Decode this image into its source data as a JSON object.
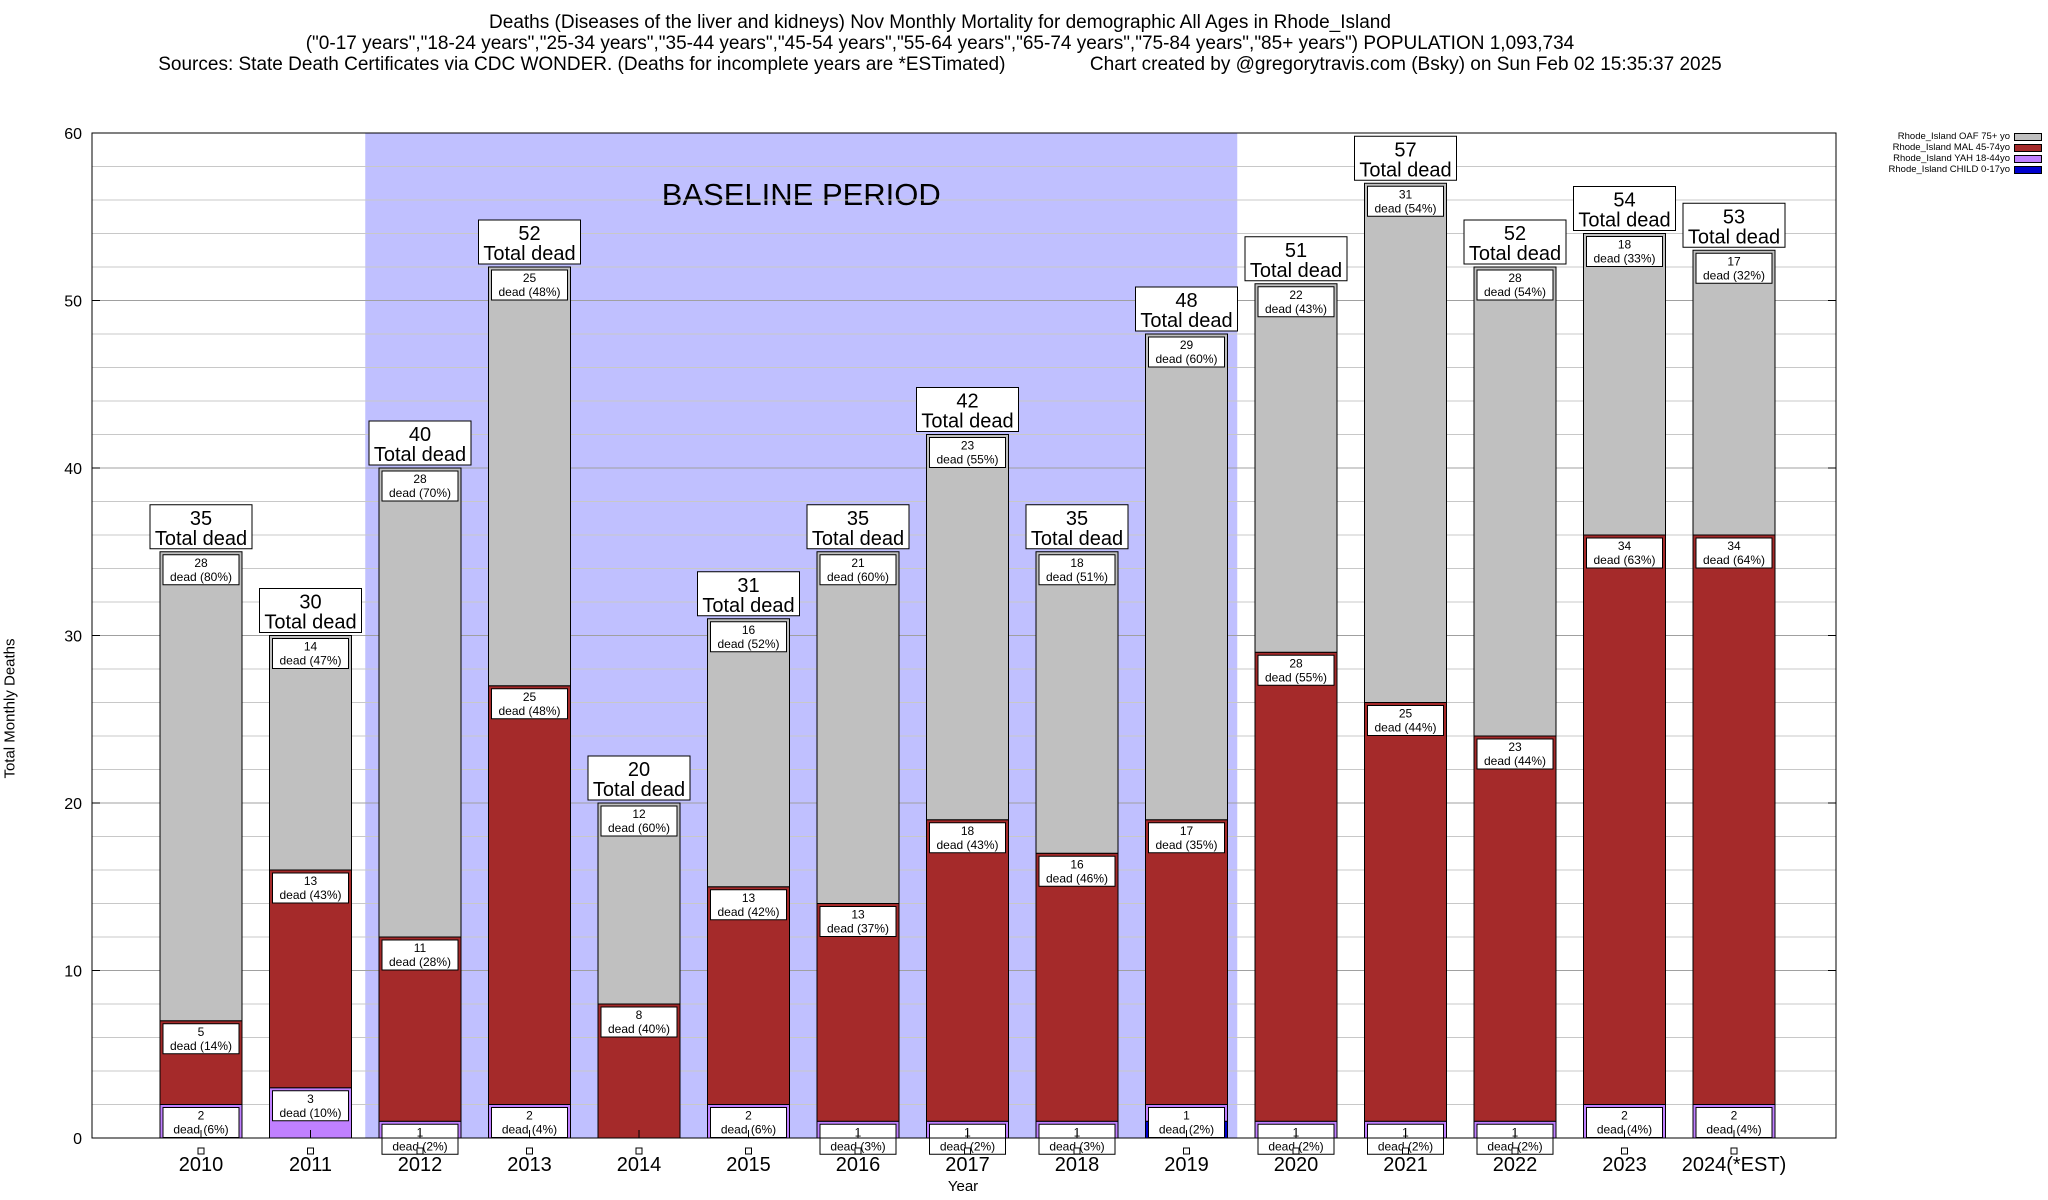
{
  "header": {
    "line1": "Deaths (Diseases of the liver and kidneys) Nov Monthly Mortality for demographic All Ages in Rhode_Island",
    "line2": "(\"0-17 years\",\"18-24 years\",\"25-34 years\",\"35-44 years\",\"45-54 years\",\"55-64 years\",\"65-74 years\",\"75-84 years\",\"85+ years\") POPULATION 1,093,734",
    "line3": "Sources: State Death Certificates via CDC WONDER. (Deaths for incomplete years are *ESTimated)                Chart created by @gregorytravis.com (Bsky) on Sun Feb 02 15:35:37 2025"
  },
  "colors": {
    "OAF": "#c0c0c0",
    "MAL": "#a52a2a",
    "YAH": "#c080ff",
    "CHILD": "#0000cd",
    "baseline": "#c0c0ff"
  },
  "chart_data": {
    "type": "bar",
    "stacked": true,
    "xlabel": "Year",
    "ylabel": "Total Monthly Deaths",
    "ylim": [
      0,
      60
    ],
    "yticks": [
      0,
      10,
      20,
      30,
      40,
      50,
      60
    ],
    "grid": true,
    "legend_position": "top-right",
    "categories": [
      "2010",
      "2011",
      "2012",
      "2013",
      "2014",
      "2015",
      "2016",
      "2017",
      "2018",
      "2019",
      "2020",
      "2021",
      "2022",
      "2023",
      "2024(*EST)"
    ],
    "baseline_label": "BASELINE PERIOD",
    "baseline_range": [
      "2012",
      "2019"
    ],
    "series": [
      {
        "name": "Rhode_Island CHILD 0-17yo",
        "key": "CHILD",
        "values": [
          0,
          0,
          0,
          0,
          0,
          0,
          0,
          0,
          0,
          1,
          0,
          0,
          0,
          0,
          0
        ]
      },
      {
        "name": "Rhode_Island YAH 18-44yo",
        "key": "YAH",
        "values": [
          2,
          3,
          1,
          2,
          0,
          2,
          1,
          1,
          1,
          1,
          1,
          1,
          1,
          2,
          2
        ]
      },
      {
        "name": "Rhode_Island MAL 45-74yo",
        "key": "MAL",
        "values": [
          5,
          13,
          11,
          25,
          8,
          13,
          13,
          18,
          16,
          17,
          28,
          25,
          23,
          34,
          34
        ]
      },
      {
        "name": "Rhode_Island OAF 75+ yo",
        "key": "OAF",
        "values": [
          28,
          14,
          28,
          25,
          12,
          16,
          21,
          23,
          18,
          29,
          22,
          31,
          28,
          18,
          17
        ]
      }
    ],
    "totals": [
      35,
      30,
      40,
      52,
      20,
      31,
      35,
      42,
      35,
      48,
      51,
      57,
      52,
      54,
      53
    ],
    "total_suffix": "Total dead",
    "segment_labels": {
      "OAF": [
        "28|dead (80%)",
        "14|dead (47%)",
        "28|dead (70%)",
        "25|dead (48%)",
        "12|dead (60%)",
        "16|dead (52%)",
        "21|dead (60%)",
        "23|dead (55%)",
        "18|dead (51%)",
        "29|dead (60%)",
        "22|dead (43%)",
        "31|dead (54%)",
        "28|dead (54%)",
        "18|dead (33%)",
        "17|dead (32%)"
      ],
      "MAL": [
        "5|dead (14%)",
        "13|dead (43%)",
        "11|dead (28%)",
        "25|dead (48%)",
        "8|dead (40%)",
        "13|dead (42%)",
        "13|dead (37%)",
        "18|dead (43%)",
        "16|dead (46%)",
        "17|dead (35%)",
        "28|dead (55%)",
        "25|dead (44%)",
        "23|dead (44%)",
        "34|dead (63%)",
        "34|dead (64%)"
      ],
      "YAH": [
        "2|dead (6%)",
        "3|dead (10%)",
        "1|dead (2%)",
        "2|dead (4%)",
        "",
        "2|dead (6%)",
        "1|dead (3%)",
        "1|dead (2%)",
        "1|dead (3%)",
        "1|dead (2%)",
        "1|dead (2%)",
        "1|dead (2%)",
        "1|dead (2%)",
        "2|dead (4%)",
        "2|dead (4%)"
      ]
    }
  }
}
